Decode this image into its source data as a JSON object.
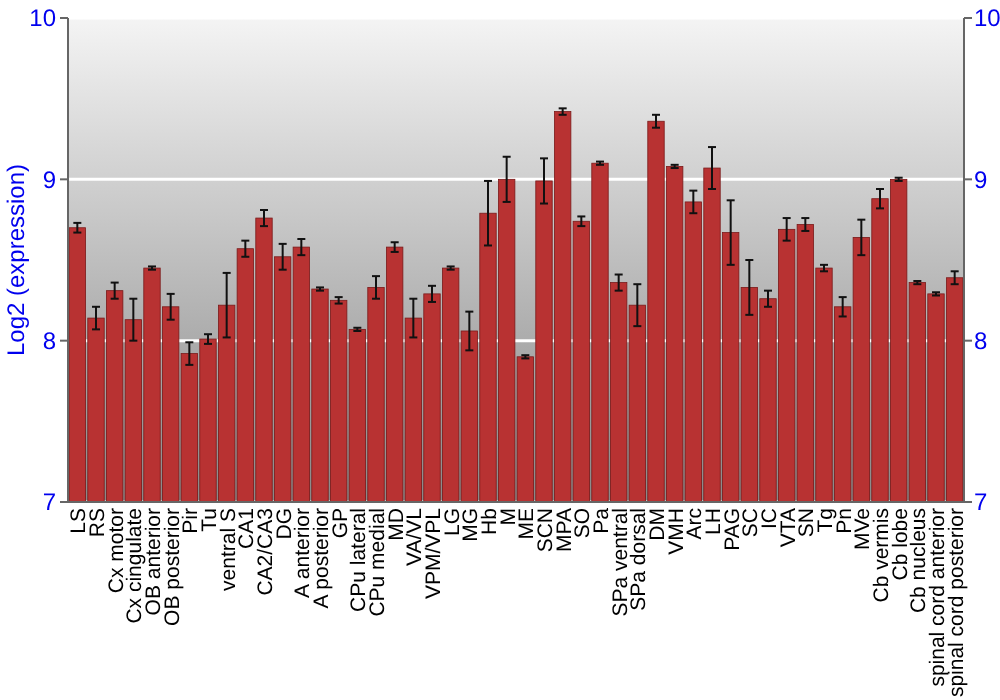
{
  "chart_data": {
    "type": "bar",
    "ylabel": "Log2 (expression)",
    "categories": [
      "LS",
      "RS",
      "Cx motor",
      "Cx cingulate",
      "OB anterior",
      "OB posterior",
      "Pir",
      "Tu",
      "ventral S",
      "CA1",
      "CA2/CA3",
      "DG",
      "A anterior",
      "A posterior",
      "GP",
      "CPu lateral",
      "CPu medial",
      "MD",
      "VA/VL",
      "VPM/VPL",
      "LG",
      "MG",
      "Hb",
      "M",
      "ME",
      "SCN",
      "MPA",
      "SO",
      "Pa",
      "SPa ventral",
      "SPa dorsal",
      "DM",
      "VMH",
      "Arc",
      "LH",
      "PAG",
      "SC",
      "IC",
      "VTA",
      "SN",
      "Tg",
      "Pn",
      "MVe",
      "Cb vermis",
      "Cb lobe",
      "Cb nucleus",
      "spinal cord anterior",
      "spinal cord posterior"
    ],
    "values": [
      8.7,
      8.14,
      8.31,
      8.13,
      8.45,
      8.21,
      7.92,
      8.01,
      8.22,
      8.57,
      8.76,
      8.52,
      8.58,
      8.32,
      8.25,
      8.07,
      8.33,
      8.58,
      8.14,
      8.29,
      8.45,
      8.06,
      8.79,
      9.0,
      7.9,
      8.99,
      9.42,
      8.74,
      9.1,
      8.36,
      8.22,
      9.36,
      9.08,
      8.86,
      9.07,
      8.67,
      8.33,
      8.26,
      8.69,
      8.72,
      8.45,
      8.21,
      8.64,
      8.88,
      9.0,
      8.36,
      8.29,
      8.39
    ],
    "errors": [
      0.03,
      0.07,
      0.05,
      0.13,
      0.01,
      0.08,
      0.07,
      0.03,
      0.2,
      0.05,
      0.05,
      0.08,
      0.05,
      0.01,
      0.02,
      0.01,
      0.07,
      0.03,
      0.12,
      0.05,
      0.01,
      0.12,
      0.2,
      0.14,
      0.01,
      0.14,
      0.02,
      0.03,
      0.01,
      0.05,
      0.13,
      0.04,
      0.01,
      0.07,
      0.13,
      0.2,
      0.17,
      0.05,
      0.07,
      0.04,
      0.02,
      0.06,
      0.11,
      0.06,
      0.01,
      0.01,
      0.01,
      0.04
    ],
    "color": "#b83232",
    "ylim": [
      7,
      10
    ],
    "yticks": [
      7,
      8,
      9,
      10
    ],
    "y2lim": [
      7,
      10
    ],
    "y2ticks": [
      7,
      8,
      9,
      10
    ],
    "grid": "y"
  }
}
